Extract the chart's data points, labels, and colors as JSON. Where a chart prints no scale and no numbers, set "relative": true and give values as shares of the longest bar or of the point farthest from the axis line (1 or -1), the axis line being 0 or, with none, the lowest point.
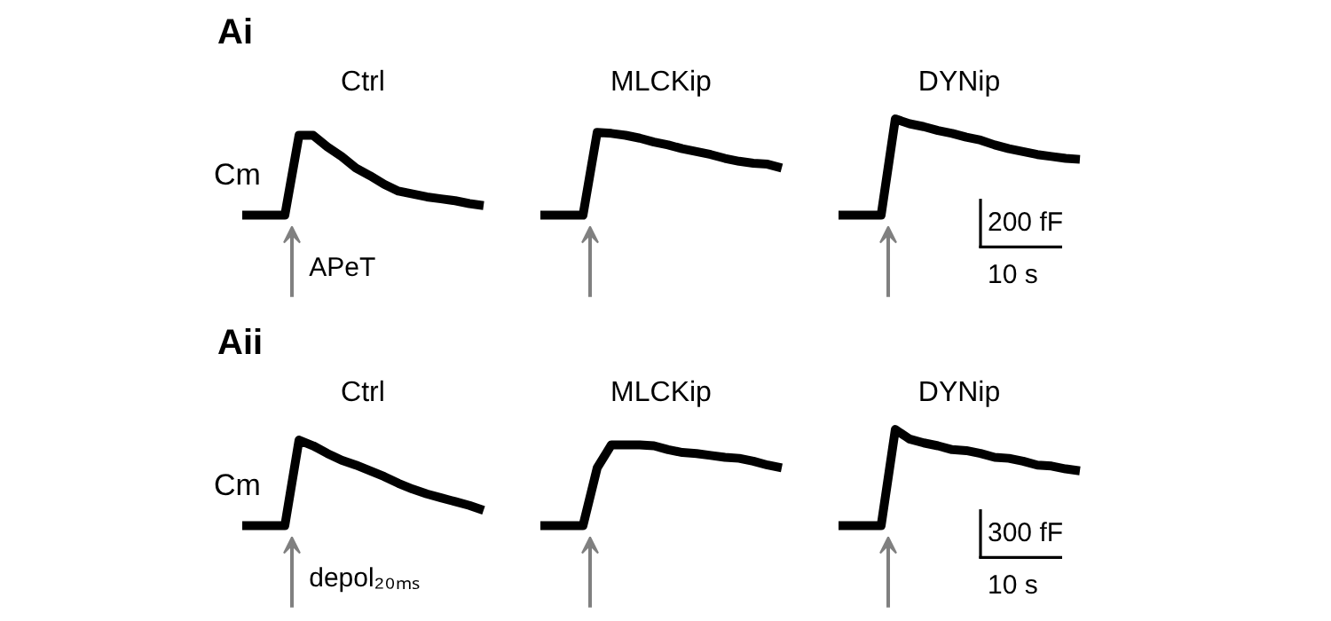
{
  "chart_data": [
    {
      "type": "line",
      "title": "Ai",
      "ylabel": "Cm",
      "relative": true,
      "legend": false,
      "categories": [
        null,
        null,
        null,
        null,
        null,
        null,
        null,
        null,
        null,
        null,
        null,
        null,
        null,
        null,
        null,
        null,
        null,
        null,
        null,
        null,
        null,
        null,
        null,
        null,
        null,
        null,
        null,
        null,
        null,
        null,
        null,
        null,
        null,
        null,
        null,
        null,
        null,
        null,
        null,
        null,
        null,
        null,
        null,
        null,
        null,
        null,
        null,
        null,
        null,
        null,
        null,
        null,
        null,
        null,
        null,
        null,
        null,
        null,
        null,
        null
      ],
      "series": [
        {
          "name": "Ctrl",
          "color": "#000000",
          "values": [
            0,
            0,
            0,
            0,
            0.83,
            0.83,
            0.71,
            0.61,
            0.49,
            0.41,
            0.32,
            0.25,
            0.22,
            0.19,
            0.17,
            0.15,
            0.12,
            0.1,
            null,
            null,
            null,
            null,
            null,
            null,
            null,
            null,
            null,
            null,
            null,
            null,
            null,
            null,
            null,
            null,
            null,
            null,
            null,
            null,
            null,
            null,
            null,
            null,
            null,
            null,
            null,
            null,
            null,
            null,
            null,
            null,
            null,
            null,
            null,
            null,
            null,
            null,
            null,
            null,
            null,
            null
          ]
        },
        {
          "name": "MLCKip",
          "color": "#000000",
          "values": [
            null,
            null,
            null,
            null,
            null,
            null,
            null,
            null,
            null,
            null,
            null,
            null,
            null,
            null,
            null,
            null,
            null,
            null,
            null,
            null,
            null,
            0,
            0,
            0,
            0,
            0.86,
            0.85,
            0.83,
            0.8,
            0.76,
            0.73,
            0.69,
            0.66,
            0.63,
            0.59,
            0.56,
            0.54,
            0.53,
            0.49,
            null,
            null,
            null,
            null,
            null,
            null,
            null,
            null,
            null,
            null,
            null,
            null,
            null,
            null,
            null,
            null,
            null,
            null,
            null,
            null,
            null
          ]
        },
        {
          "name": "DYNip",
          "color": "#000000",
          "values": [
            null,
            null,
            null,
            null,
            null,
            null,
            null,
            null,
            null,
            null,
            null,
            null,
            null,
            null,
            null,
            null,
            null,
            null,
            null,
            null,
            null,
            null,
            null,
            null,
            null,
            null,
            null,
            null,
            null,
            null,
            null,
            null,
            null,
            null,
            null,
            null,
            null,
            null,
            null,
            null,
            null,
            null,
            0,
            0,
            0,
            0,
            1,
            0.95,
            0.92,
            0.88,
            0.85,
            0.81,
            0.78,
            0.73,
            0.69,
            0.66,
            0.63,
            0.61,
            0.59,
            0.58
          ]
        }
      ],
      "annotations": [
        "APeT",
        "200 fF",
        "10 s"
      ]
    },
    {
      "type": "line",
      "title": "Aii",
      "ylabel": "Cm",
      "relative": true,
      "legend": false,
      "categories": [
        null,
        null,
        null,
        null,
        null,
        null,
        null,
        null,
        null,
        null,
        null,
        null,
        null,
        null,
        null,
        null,
        null,
        null,
        null,
        null,
        null,
        null,
        null,
        null,
        null,
        null,
        null,
        null,
        null,
        null,
        null,
        null,
        null,
        null,
        null,
        null,
        null,
        null,
        null,
        null,
        null,
        null,
        null,
        null,
        null,
        null,
        null,
        null,
        null,
        null,
        null,
        null,
        null,
        null,
        null,
        null,
        null,
        null,
        null,
        null
      ],
      "series": [
        {
          "name": "Ctrl",
          "color": "#000000",
          "values": [
            0,
            0,
            0,
            0,
            0.89,
            0.83,
            0.75,
            0.68,
            0.63,
            0.57,
            0.51,
            0.44,
            0.38,
            0.33,
            0.29,
            0.25,
            0.21,
            0.16,
            null,
            null,
            null,
            null,
            null,
            null,
            null,
            null,
            null,
            null,
            null,
            null,
            null,
            null,
            null,
            null,
            null,
            null,
            null,
            null,
            null,
            null,
            null,
            null,
            null,
            null,
            null,
            null,
            null,
            null,
            null,
            null,
            null,
            null,
            null,
            null,
            null,
            null,
            null,
            null,
            null,
            null
          ]
        },
        {
          "name": "MLCKip",
          "color": "#000000",
          "values": [
            null,
            null,
            null,
            null,
            null,
            null,
            null,
            null,
            null,
            null,
            null,
            null,
            null,
            null,
            null,
            null,
            null,
            null,
            null,
            null,
            null,
            0,
            0,
            0,
            0,
            0.6,
            0.84,
            0.84,
            0.84,
            0.83,
            0.79,
            0.76,
            0.75,
            0.73,
            0.71,
            0.7,
            0.67,
            0.63,
            0.6,
            null,
            null,
            null,
            null,
            null,
            null,
            null,
            null,
            null,
            null,
            null,
            null,
            null,
            null,
            null,
            null,
            null,
            null,
            null,
            null,
            null
          ]
        },
        {
          "name": "DYNip",
          "color": "#000000",
          "values": [
            null,
            null,
            null,
            null,
            null,
            null,
            null,
            null,
            null,
            null,
            null,
            null,
            null,
            null,
            null,
            null,
            null,
            null,
            null,
            null,
            null,
            null,
            null,
            null,
            null,
            null,
            null,
            null,
            null,
            null,
            null,
            null,
            null,
            null,
            null,
            null,
            null,
            null,
            null,
            null,
            null,
            null,
            0,
            0,
            0,
            0,
            1,
            0.9,
            0.86,
            0.83,
            0.79,
            0.78,
            0.75,
            0.71,
            0.7,
            0.67,
            0.63,
            0.62,
            0.59,
            0.57
          ]
        }
      ],
      "annotations": [
        "depol₂₀ₘₛ",
        "300 fF",
        "10 s"
      ]
    }
  ]
}
